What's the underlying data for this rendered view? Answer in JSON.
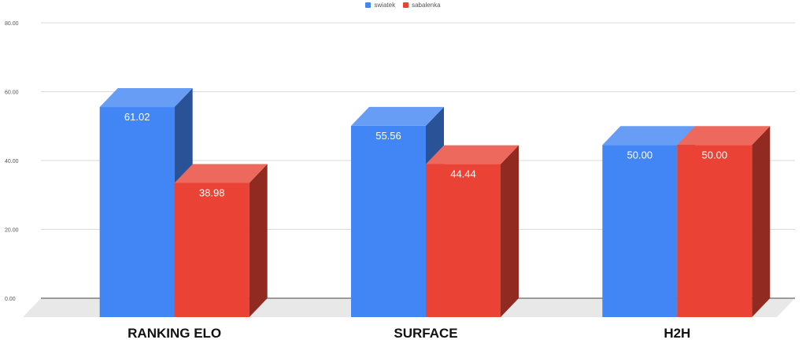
{
  "chart_data": {
    "type": "bar",
    "categories": [
      "RANKING ELO",
      "SURFACE",
      "H2H"
    ],
    "series": [
      {
        "name": "swiatek",
        "values": [
          61.02,
          55.56,
          50.0
        ],
        "labels": [
          "61.02",
          "55.56",
          "50.00"
        ],
        "color": "#4285f4"
      },
      {
        "name": "sabalenka",
        "values": [
          38.98,
          44.44,
          50.0
        ],
        "labels": [
          "38.98",
          "44.44",
          "50.00"
        ],
        "color": "#ea4335"
      }
    ],
    "ylim": [
      0,
      80
    ],
    "yticks": [
      "0.00",
      "20.00",
      "40.00",
      "60.00",
      "80.00"
    ],
    "legend_position": "top",
    "grid": true,
    "style": "3d"
  }
}
